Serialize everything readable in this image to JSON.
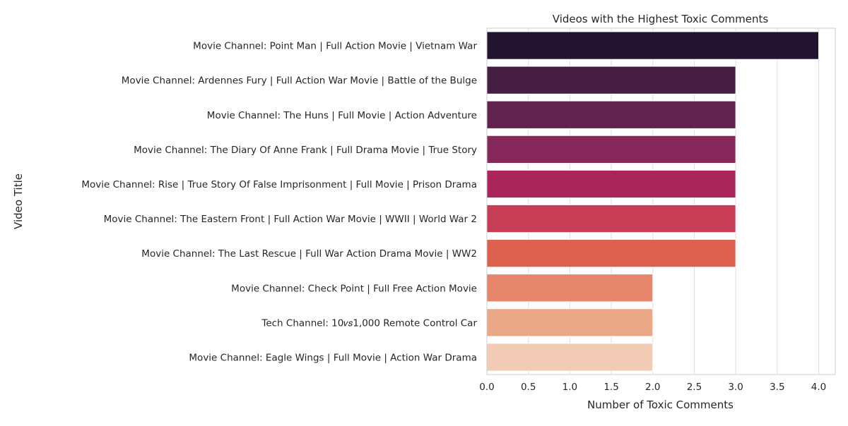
{
  "chart_data": {
    "type": "bar",
    "orientation": "horizontal",
    "title": "Videos with the Highest Toxic Comments",
    "xlabel": "Number of Toxic Comments",
    "ylabel": "Video Title",
    "xlim": [
      0,
      4.2
    ],
    "xticks": [
      "0.0",
      "0.5",
      "1.0",
      "1.5",
      "2.0",
      "2.5",
      "3.0",
      "3.5",
      "4.0"
    ],
    "grid": "vertical",
    "categories": [
      "Movie Channel: Point Man | Full Action Movie | Vietnam War",
      "Movie Channel: Ardennes Fury | Full Action War Movie | Battle of the Bulge",
      "Movie Channel: The Huns | Full Movie | Action Adventure",
      "Movie Channel: The Diary Of Anne Frank | Full Drama Movie | True Story",
      "Movie Channel: Rise | True Story Of False Imprisonment | Full Movie | Prison Drama",
      "Movie Channel: The Eastern Front | Full Action War Movie | WWII | World War 2",
      "Movie Channel: The Last Rescue | Full War Action Drama Movie | WW2",
      "Movie Channel: Check Point | Full Free Action Movie",
      "Tech Channel: 10𝑣𝑠1,000 Remote Control Car",
      "Movie Channel: Eagle Wings | Full Movie | Action War Drama"
    ],
    "values": [
      4,
      3,
      3,
      3,
      3,
      3,
      3,
      2,
      2,
      2
    ],
    "colors": [
      "#221331",
      "#451e41",
      "#62224e",
      "#862859",
      "#a9255a",
      "#c73d56",
      "#dc604e",
      "#e6876b",
      "#eba886",
      "#f1cbb3"
    ],
    "grid_color": "#dddddd",
    "frame_color": "#cccccc"
  }
}
